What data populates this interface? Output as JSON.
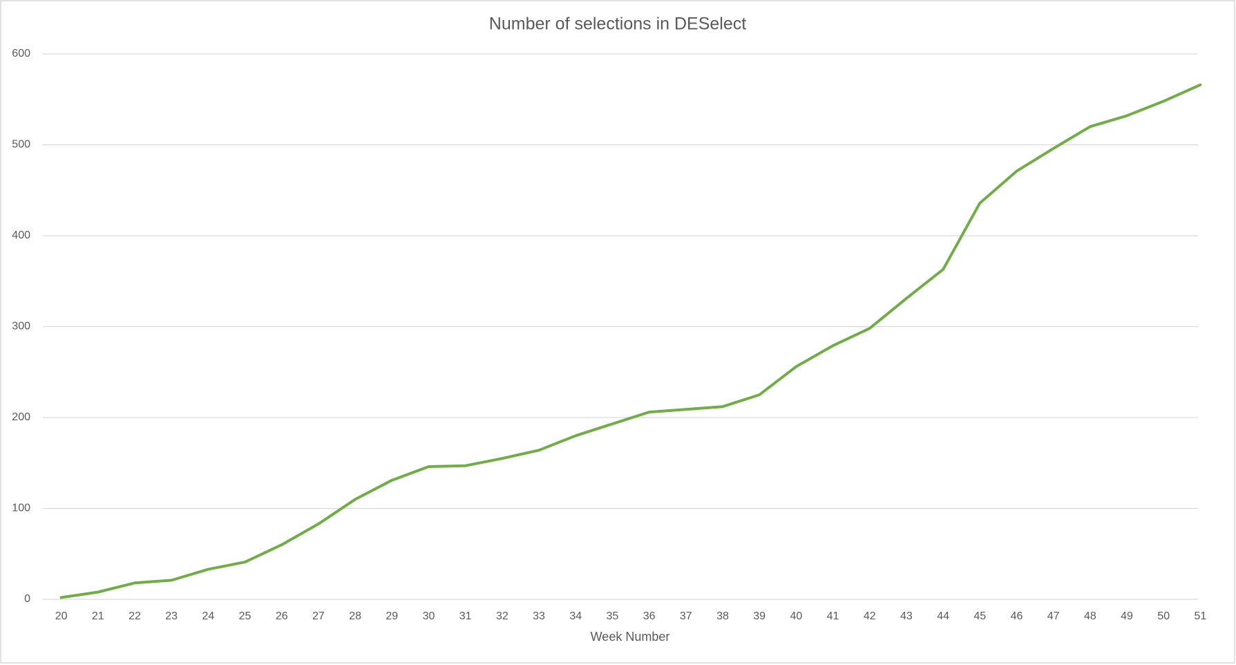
{
  "chart_data": {
    "type": "line",
    "title": "Number of selections in DESelect",
    "x_label": "Week Number",
    "categories": [
      "20",
      "21",
      "22",
      "23",
      "24",
      "25",
      "26",
      "27",
      "28",
      "29",
      "30",
      "31",
      "32",
      "33",
      "34",
      "35",
      "36",
      "37",
      "38",
      "39",
      "40",
      "41",
      "42",
      "43",
      "44",
      "45",
      "46",
      "47",
      "48",
      "49",
      "50",
      "51"
    ],
    "series": [
      {
        "name": "Selections",
        "color": "#70ad47",
        "values": [
          2,
          8,
          18,
          21,
          33,
          41,
          60,
          83,
          110,
          131,
          146,
          147,
          155,
          164,
          180,
          193,
          206,
          209,
          212,
          225,
          256,
          279,
          298,
          331,
          363,
          436,
          471,
          496,
          520,
          532,
          548,
          566
        ]
      }
    ],
    "ylim": [
      0,
      600
    ],
    "yticks": [
      0,
      100,
      200,
      300,
      400,
      500,
      600
    ],
    "grid": true
  }
}
